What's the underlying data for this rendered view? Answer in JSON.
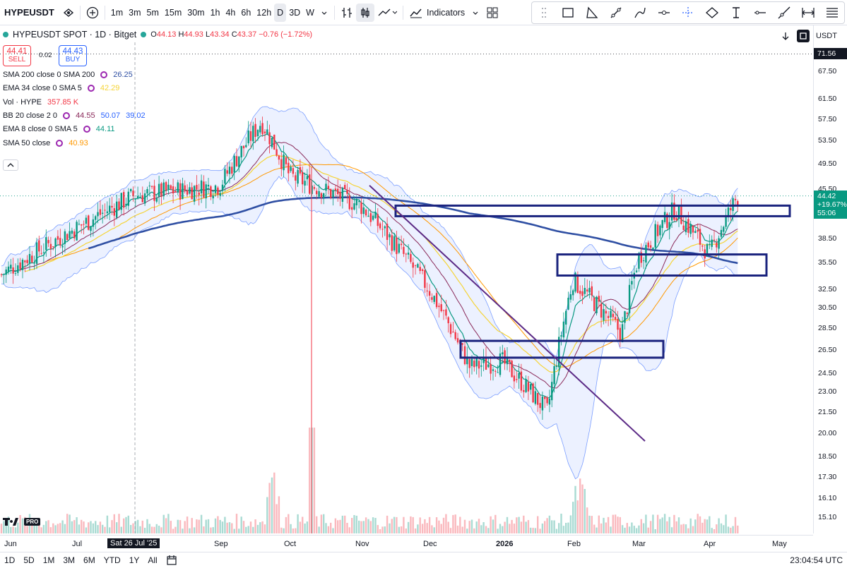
{
  "toolbar": {
    "symbol": "HYPEUSDT",
    "intervals": [
      "1m",
      "3m",
      "5m",
      "15m",
      "30m",
      "1h",
      "4h",
      "6h",
      "12h",
      "D",
      "3D",
      "W"
    ],
    "active_interval": "D",
    "indicators_label": "Indicators"
  },
  "header": {
    "title": "HYPEUSDT SPOT · 1D · Bitget",
    "o_label": "O",
    "o": "44.13",
    "h_label": "H",
    "h": "44.93",
    "l_label": "L",
    "l": "43.34",
    "c_label": "C",
    "c": "43.37",
    "change": "−0.76 (−1.72%)"
  },
  "trade": {
    "sell_price": "44.41",
    "sell_label": "SELL",
    "spread": "0.02",
    "buy_price": "44.43",
    "buy_label": "BUY"
  },
  "indicators": [
    {
      "name": "SMA 200 close 0 SMA 200",
      "values": [
        "26.25"
      ],
      "colors": [
        "#2f4fa3"
      ]
    },
    {
      "name": "EMA 34 close 0 SMA 5",
      "values": [
        "42.29"
      ],
      "colors": [
        "#f5d437"
      ]
    },
    {
      "name": "Vol · HYPE",
      "values": [
        "357.85 K"
      ],
      "colors": [
        "#f23645"
      ]
    },
    {
      "name": "BB 20 close 2 0",
      "values": [
        "44.55",
        "50.07",
        "39.02"
      ],
      "colors": [
        "#8a2a5a",
        "#2962ff",
        "#2962ff"
      ]
    },
    {
      "name": "EMA 8 close 0 SMA 5",
      "values": [
        "44.11"
      ],
      "colors": [
        "#089981"
      ]
    },
    {
      "name": "SMA 50 close",
      "values": [
        "40.93"
      ],
      "colors": [
        "#ff9800"
      ]
    }
  ],
  "price_axis": {
    "currency": "USDT",
    "ticks": [
      "67.50",
      "61.50",
      "57.50",
      "53.50",
      "49.50",
      "45.50",
      "38.50",
      "35.50",
      "32.50",
      "30.50",
      "28.50",
      "26.50",
      "24.50",
      "23.00",
      "21.50",
      "20.00",
      "18.50",
      "17.30",
      "16.10",
      "15.10"
    ],
    "high_badge": "71.56",
    "last_price": "44.42",
    "last_change": "+19.67%",
    "countdown": "55:06",
    "colors": {
      "up": "#089981",
      "down": "#f23645",
      "badge_dark": "#131722"
    }
  },
  "time_axis": {
    "labels": [
      "Jun",
      "Jul",
      "Sat 26 Jul '25",
      "Sep",
      "Oct",
      "Nov",
      "Dec",
      "2026",
      "Feb",
      "Mar",
      "Apr",
      "May"
    ]
  },
  "bottom": {
    "ranges": [
      "1D",
      "5D",
      "1M",
      "3M",
      "6M",
      "YTD",
      "1Y",
      "All"
    ],
    "clock": "23:04:54 UTC"
  },
  "logo": "TV PRO",
  "chart_data": {
    "type": "candlestick",
    "symbol": "HYPEUSDT",
    "interval": "1D",
    "price_range": [
      14.5,
      72
    ],
    "scale": "log",
    "approx_close_path": [
      {
        "t": "Jun",
        "close": 34.0
      },
      {
        "t": "Jul",
        "close": 40.0
      },
      {
        "t": "Sat 26 Jul '25",
        "close": 44.5
      },
      {
        "t": "Sep",
        "close": 46.0
      },
      {
        "t": "Sep (late)",
        "close": 57.0
      },
      {
        "t": "Oct",
        "close": 47.5
      },
      {
        "t": "Nov",
        "close": 43.0
      },
      {
        "t": "Dec",
        "close": 32.5
      },
      {
        "t": "Dec (late)",
        "close": 25.0
      },
      {
        "t": "2026",
        "close": 25.5
      },
      {
        "t": "Jan (late)",
        "close": 21.5
      },
      {
        "t": "Feb",
        "close": 33.5
      },
      {
        "t": "Feb (late)",
        "close": 28.0
      },
      {
        "t": "Mar",
        "close": 36.0
      },
      {
        "t": "Mar (mid)",
        "close": 42.5
      },
      {
        "t": "Apr",
        "close": 36.5
      },
      {
        "t": "Apr (mid)",
        "close": 44.42
      }
    ],
    "zones": [
      {
        "name": "resistance-zone-top",
        "low": 41.5,
        "high": 43.0
      },
      {
        "name": "support-zone-mid",
        "low": 34.0,
        "high": 36.5
      },
      {
        "name": "support-zone-low",
        "low": 25.8,
        "high": 27.3
      }
    ],
    "trendline": {
      "from": {
        "t": "Nov",
        "price": 46.0
      },
      "to": {
        "t": "Feb",
        "price": 19.5
      }
    }
  }
}
